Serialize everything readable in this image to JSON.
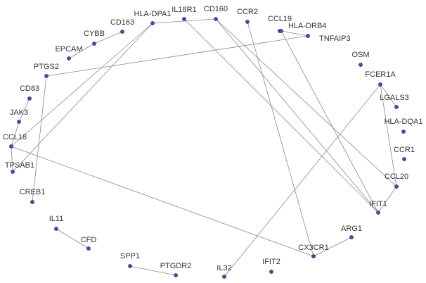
{
  "network": {
    "node_color": "#4b4a9e",
    "edge_color": "#8a8a8a",
    "nodes": [
      {
        "id": "HLA-DPA1",
        "label": "HLA-DPA1"
      },
      {
        "id": "IL18R1",
        "label": "IL18R1"
      },
      {
        "id": "CD160",
        "label": "CD160"
      },
      {
        "id": "CCR2",
        "label": "CCR2"
      },
      {
        "id": "CCL19",
        "label": "CCL19"
      },
      {
        "id": "HLA-DRB4",
        "label": "HLA-DRB4"
      },
      {
        "id": "TNFAIP3",
        "label": "TNFAIP3"
      },
      {
        "id": "CD163",
        "label": "CD163"
      },
      {
        "id": "CYBB",
        "label": "CYBB"
      },
      {
        "id": "EPCAM",
        "label": "EPCAM"
      },
      {
        "id": "PTGS2",
        "label": "PTGS2"
      },
      {
        "id": "CD83",
        "label": "CD83"
      },
      {
        "id": "JAK3",
        "label": "JAK3"
      },
      {
        "id": "CCL18",
        "label": "CCL18"
      },
      {
        "id": "TPSAB1",
        "label": "TPSAB1"
      },
      {
        "id": "CREB1",
        "label": "CREB1"
      },
      {
        "id": "IL11",
        "label": "IL11"
      },
      {
        "id": "CFD",
        "label": "CFD"
      },
      {
        "id": "SPP1",
        "label": "SPP1"
      },
      {
        "id": "PTGDR2",
        "label": "PTGDR2"
      },
      {
        "id": "IL32",
        "label": "IL32"
      },
      {
        "id": "IFIT2",
        "label": "IFIT2"
      },
      {
        "id": "CX3CR1",
        "label": "CX3CR1"
      },
      {
        "id": "ARG1",
        "label": "ARG1"
      },
      {
        "id": "IFIT1",
        "label": "IFIT1"
      },
      {
        "id": "CCL20",
        "label": "CCL20"
      },
      {
        "id": "CCR1",
        "label": "CCR1"
      },
      {
        "id": "HLA-DQA1",
        "label": "HLA-DQA1"
      },
      {
        "id": "LGALS3",
        "label": "LGALS3"
      },
      {
        "id": "FCER1A",
        "label": "FCER1A"
      },
      {
        "id": "OSM",
        "label": "OSM"
      }
    ],
    "edges": [
      [
        "HLA-DPA1",
        "CD160"
      ],
      [
        "HLA-DPA1",
        "CCL18"
      ],
      [
        "HLA-DPA1",
        "TPSAB1"
      ],
      [
        "IL18R1",
        "IFIT1"
      ],
      [
        "CD160",
        "CCL20"
      ],
      [
        "CD160",
        "IFIT1"
      ],
      [
        "CCR2",
        "CX3CR1"
      ],
      [
        "HLA-DRB4",
        "IFIT1"
      ],
      [
        "TNFAIP3",
        "PTGS2"
      ],
      [
        "TNFAIP3",
        "HLA-DRB4"
      ],
      [
        "CD163",
        "CYBB"
      ],
      [
        "EPCAM",
        "CYBB"
      ],
      [
        "PTGS2",
        "CREB1"
      ],
      [
        "CD83",
        "JAK3"
      ],
      [
        "JAK3",
        "CCL18"
      ],
      [
        "CCL18",
        "TPSAB1"
      ],
      [
        "CCL18",
        "CX3CR1"
      ],
      [
        "IL11",
        "CFD"
      ],
      [
        "SPP1",
        "PTGDR2"
      ],
      [
        "IL32",
        "FCER1A"
      ],
      [
        "CX3CR1",
        "ARG1"
      ],
      [
        "CCL20",
        "FCER1A"
      ],
      [
        "CCL20",
        "IFIT1"
      ],
      [
        "LGALS3",
        "FCER1A"
      ]
    ]
  }
}
